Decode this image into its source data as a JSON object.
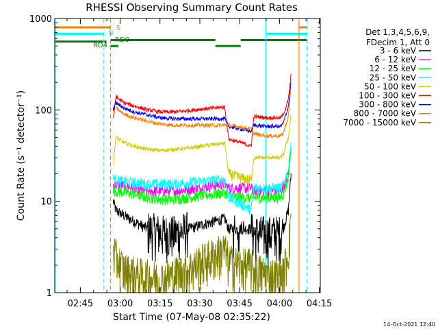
{
  "chart_data": {
    "type": "line",
    "title": "RHESSI Observing Summary Count Rates",
    "xlabel": "Start Time (07-May-08 02:35:22)",
    "ylabel": "Count Rate (s⁻¹ detector⁻¹)",
    "yscale": "log",
    "ylim": [
      1,
      1000
    ],
    "xlim_minutes": [
      0,
      100
    ],
    "x_unit": "minutes after 02:35:22",
    "y_tick_labels": [
      {
        "value": 1,
        "label": "1"
      },
      {
        "value": 10,
        "label": "10"
      },
      {
        "value": 100,
        "label": "100"
      },
      {
        "value": 1000,
        "label": "1000"
      }
    ],
    "x_tick_labels": [
      {
        "value": 9.63,
        "label": "02:45"
      },
      {
        "value": 24.63,
        "label": "03:00"
      },
      {
        "value": 39.63,
        "label": "03:15"
      },
      {
        "value": 54.63,
        "label": "03:30"
      },
      {
        "value": 69.63,
        "label": "03:45"
      },
      {
        "value": 84.63,
        "label": "04:00"
      },
      {
        "value": 99.63,
        "label": "04:15"
      }
    ],
    "legend_header": [
      "Det 1,3,4,5,6,9,",
      "FDecim 1, Att 0"
    ],
    "legend_position": "right",
    "series": [
      {
        "name": "3 - 6 keV",
        "color": "#000000",
        "x": [
          22,
          23,
          26,
          30,
          35,
          40,
          45,
          50,
          55,
          60,
          64,
          65.5,
          70,
          74,
          75,
          80,
          85,
          86,
          88,
          89
        ],
        "y": [
          10,
          8,
          7,
          6,
          5,
          4.6,
          4.5,
          5,
          5.5,
          6,
          6.5,
          5,
          5,
          5,
          4.5,
          4.5,
          4.5,
          5,
          8,
          20
        ]
      },
      {
        "name": "6 - 12 keV",
        "color": "#ff00ff",
        "x": [
          22,
          23,
          26,
          30,
          35,
          40,
          45,
          50,
          55,
          60,
          64,
          65.5,
          70,
          74,
          75,
          80,
          85,
          86,
          88,
          89
        ],
        "y": [
          15,
          15,
          15,
          14,
          13,
          13,
          13,
          13.5,
          14,
          15,
          15.5,
          14,
          14,
          14,
          13,
          13,
          13,
          14,
          20,
          40
        ]
      },
      {
        "name": "12 - 25 keV",
        "color": "#00ff00",
        "x": [
          22,
          23,
          26,
          30,
          35,
          40,
          45,
          50,
          55,
          60,
          64,
          65.5,
          70,
          74,
          75,
          80,
          85,
          86,
          88,
          89
        ],
        "y": [
          13,
          13,
          12.5,
          12,
          11,
          10.5,
          10.5,
          11,
          11.5,
          12,
          12.5,
          11.5,
          11,
          11,
          11,
          11,
          11,
          12,
          18,
          38
        ]
      },
      {
        "name": "25 - 50 keV",
        "color": "#00ffff",
        "x": [
          22,
          23,
          26,
          30,
          35,
          40,
          45,
          50,
          55,
          60,
          64,
          65.5,
          70,
          74,
          75,
          80,
          85,
          86,
          88,
          89
        ],
        "y": [
          18,
          17,
          16.5,
          16,
          15.5,
          15.5,
          15.5,
          16,
          16.5,
          17,
          17.5,
          11,
          9.5,
          8,
          14,
          14,
          14,
          15,
          22,
          45
        ]
      },
      {
        "name": "50 - 100 keV",
        "color": "#cccc00",
        "x": [
          22,
          23,
          26,
          30,
          35,
          40,
          45,
          50,
          55,
          60,
          64,
          65.5,
          70,
          74,
          75,
          80,
          85,
          86,
          88,
          89
        ],
        "y": [
          25,
          50,
          44,
          40,
          37,
          36,
          37,
          38,
          40,
          42,
          43,
          20,
          18,
          17,
          30,
          30,
          30,
          32,
          50,
          90
        ]
      },
      {
        "name": "100 - 300 keV",
        "color": "#ff0000",
        "x": [
          22,
          23,
          26,
          30,
          35,
          40,
          45,
          50,
          55,
          60,
          64,
          65.5,
          70,
          74,
          75,
          80,
          85,
          86,
          88,
          89
        ],
        "y": [
          80,
          140,
          120,
          110,
          100,
          95,
          95,
          98,
          102,
          105,
          108,
          48,
          44,
          40,
          85,
          82,
          82,
          88,
          130,
          240
        ]
      },
      {
        "name": "300 - 800 keV",
        "color": "#0000ff",
        "x": [
          22,
          23,
          26,
          30,
          35,
          40,
          45,
          50,
          55,
          60,
          64,
          65.5,
          70,
          74,
          75,
          80,
          85,
          86,
          88,
          89
        ],
        "y": [
          100,
          120,
          105,
          95,
          88,
          82,
          80,
          80,
          80,
          80,
          80,
          66,
          62,
          58,
          68,
          66,
          66,
          70,
          110,
          200
        ]
      },
      {
        "name": "800 - 7000 keV",
        "color": "#ff8000",
        "x": [
          22,
          23,
          26,
          30,
          35,
          40,
          45,
          50,
          55,
          60,
          64,
          65.5,
          70,
          74,
          75,
          80,
          85,
          86,
          88,
          89
        ],
        "y": [
          85,
          105,
          90,
          82,
          75,
          70,
          68,
          68,
          68,
          68,
          68,
          68,
          65,
          62,
          55,
          52,
          52,
          55,
          85,
          180
        ]
      },
      {
        "name": "7000 - 15000 keV",
        "color": "#808000",
        "x": [
          22,
          23,
          26,
          30,
          35,
          40,
          45,
          50,
          55,
          60,
          64,
          65.5,
          70,
          74,
          75,
          80,
          85,
          86,
          88,
          89
        ],
        "y": [
          3,
          2.5,
          1.8,
          1.6,
          1.5,
          1.4,
          1.6,
          1.8,
          2.2,
          2.6,
          3,
          2.2,
          2,
          2,
          1.8,
          1.6,
          1.5,
          1.6,
          3,
          8
        ]
      }
    ],
    "vertical_lines": [
      {
        "x": 0.1,
        "color": "#00ffff",
        "dashed": false
      },
      {
        "x": 18.5,
        "color": "#00ffff",
        "dashed": true
      },
      {
        "x": 21.0,
        "color": "#ff8000",
        "dashed": true
      },
      {
        "x": 79.5,
        "color": "#00ffff",
        "dashed": false
      },
      {
        "x": 92.0,
        "color": "#ff8000",
        "dashed": false
      },
      {
        "x": 95.0,
        "color": "#00ffff",
        "dashed": true
      }
    ],
    "flags": [
      {
        "name": "S",
        "color": "#ff8000",
        "value": 800,
        "segments": [
          [
            0,
            21
          ],
          [
            92,
            95
          ]
        ]
      },
      {
        "name": "N",
        "color": "#00ffff",
        "value": 680,
        "segments": [
          [
            0,
            18.5
          ],
          [
            79.5,
            95
          ]
        ]
      },
      {
        "name": "RD4",
        "color": "#008000",
        "value": 560,
        "segments": [
          [
            0,
            19.5
          ]
        ]
      },
      {
        "name": "RD0",
        "color": "#008000",
        "value": 580,
        "segments": [
          [
            21,
            60.5
          ],
          [
            70,
            95
          ]
        ]
      },
      {
        "name": "",
        "color": "#008000",
        "value": 500,
        "segments": [
          [
            21,
            24
          ],
          [
            60.5,
            70
          ]
        ]
      }
    ],
    "footer_date": "14-Oct-2021 12:40"
  }
}
